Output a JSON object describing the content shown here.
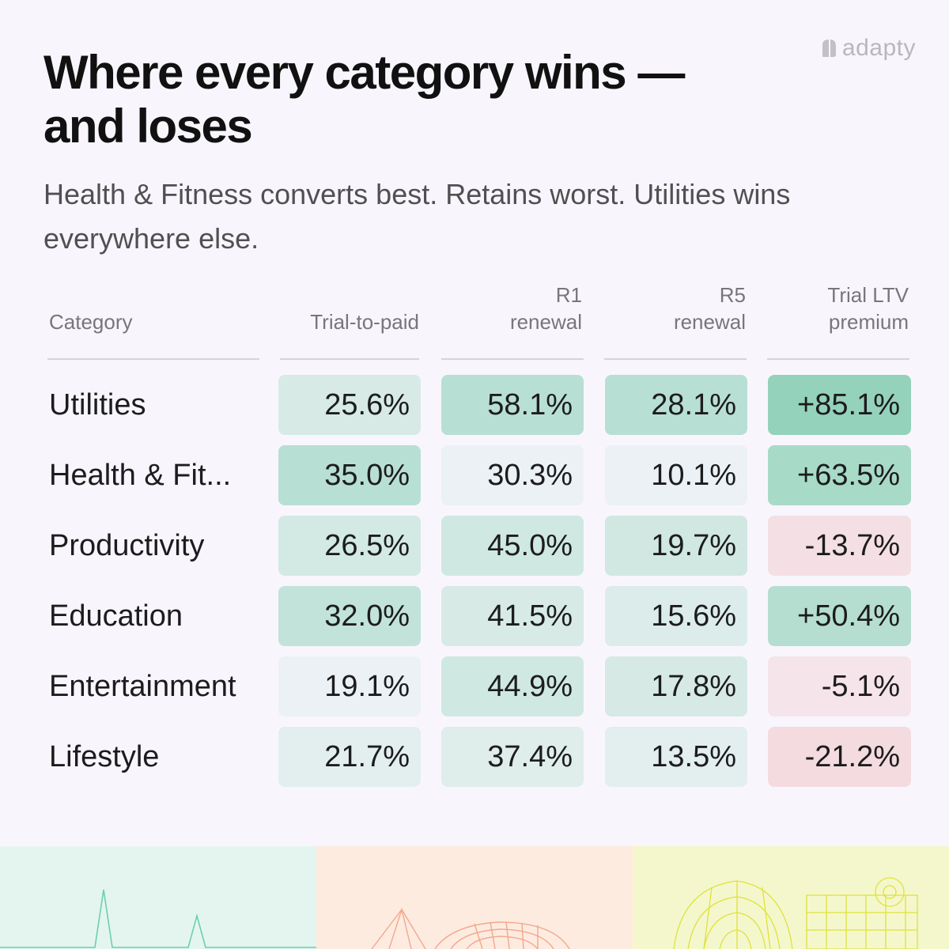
{
  "brand": {
    "name": "adapty"
  },
  "title": "Where every category wins — and loses",
  "subtitle": "Health & Fitness converts best. Retains worst. Utilities wins everywhere else.",
  "chart_data": {
    "type": "table",
    "columns": [
      {
        "label": "Category",
        "lines": [
          "Category"
        ]
      },
      {
        "label": "Trial-to-paid",
        "lines": [
          "Trial-to-paid"
        ]
      },
      {
        "label": "R1 renewal",
        "lines": [
          "R1",
          "renewal"
        ]
      },
      {
        "label": "R5 renewal",
        "lines": [
          "R5",
          "renewal"
        ]
      },
      {
        "label": "Trial LTV premium",
        "lines": [
          "Trial LTV",
          "premium"
        ]
      }
    ],
    "rows": [
      {
        "category": "Utilities",
        "display": "Utilities",
        "trial_to_paid": "25.6%",
        "r1_renewal": "58.1%",
        "r5_renewal": "28.1%",
        "trial_ltv_premium": "+85.1%"
      },
      {
        "category": "Health & Fitness",
        "display": "Health & Fit...",
        "trial_to_paid": "35.0%",
        "r1_renewal": "30.3%",
        "r5_renewal": "10.1%",
        "trial_ltv_premium": "+63.5%"
      },
      {
        "category": "Productivity",
        "display": "Productivity",
        "trial_to_paid": "26.5%",
        "r1_renewal": "45.0%",
        "r5_renewal": "19.7%",
        "trial_ltv_premium": "-13.7%"
      },
      {
        "category": "Education",
        "display": "Education",
        "trial_to_paid": "32.0%",
        "r1_renewal": "41.5%",
        "r5_renewal": "15.6%",
        "trial_ltv_premium": "+50.4%"
      },
      {
        "category": "Entertainment",
        "display": "Entertainment",
        "trial_to_paid": "19.1%",
        "r1_renewal": "44.9%",
        "r5_renewal": "17.8%",
        "trial_ltv_premium": "-5.1%"
      },
      {
        "category": "Lifestyle",
        "display": "Lifestyle",
        "trial_to_paid": "21.7%",
        "r1_renewal": "37.4%",
        "r5_renewal": "13.5%",
        "trial_ltv_premium": "-21.2%"
      }
    ]
  },
  "colors": {
    "positive": "#4cb98c",
    "negative": "#e68282",
    "panel_mint": "#e4f5ef",
    "panel_peach": "#fdebe0",
    "panel_lime": "#f4f7cc"
  }
}
